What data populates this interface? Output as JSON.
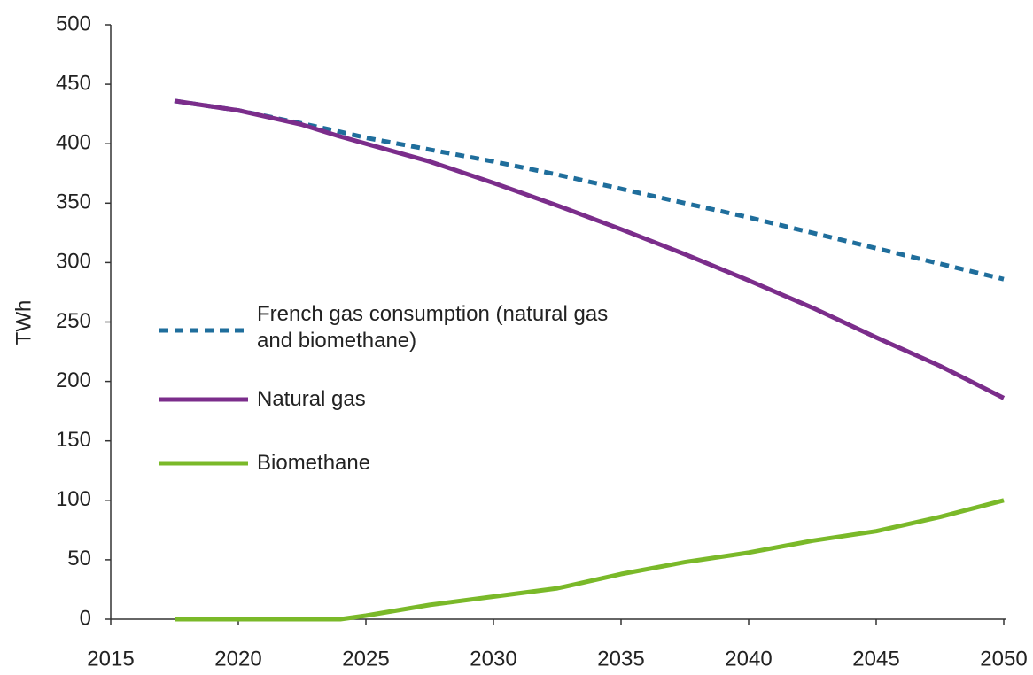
{
  "chart_data": {
    "type": "line",
    "y_label": "TWh",
    "x": [
      2017.5,
      2020,
      2022.5,
      2024,
      2025,
      2027.5,
      2030,
      2032.5,
      2035,
      2037.5,
      2040,
      2042.5,
      2045,
      2047.5,
      2050
    ],
    "series": [
      {
        "name": "French gas consumption (natural gas and biomethane)",
        "color": "#1f6e9c",
        "dash": "dotted",
        "values": [
          436,
          428,
          417,
          410,
          405,
          395,
          385,
          374,
          362,
          350,
          338,
          325,
          312,
          299,
          286
        ]
      },
      {
        "name": "Natural gas",
        "color": "#7b2d8b",
        "dash": "solid",
        "values": [
          436,
          428,
          416,
          406,
          400,
          385,
          367,
          348,
          328,
          307,
          285,
          262,
          237,
          213,
          186
        ]
      },
      {
        "name": "Biomethane",
        "color": "#7ab929",
        "dash": "solid",
        "values": [
          0,
          0,
          0,
          0,
          3,
          12,
          19,
          26,
          38,
          48,
          56,
          66,
          74,
          86,
          100
        ]
      }
    ],
    "xlim": [
      2015,
      2050
    ],
    "xticks": [
      2015,
      2020,
      2025,
      2030,
      2035,
      2040,
      2045,
      2050
    ],
    "ylim": [
      0,
      500
    ],
    "yticks": [
      0,
      50,
      100,
      150,
      200,
      250,
      300,
      350,
      400,
      450,
      500
    ],
    "grid": false
  }
}
